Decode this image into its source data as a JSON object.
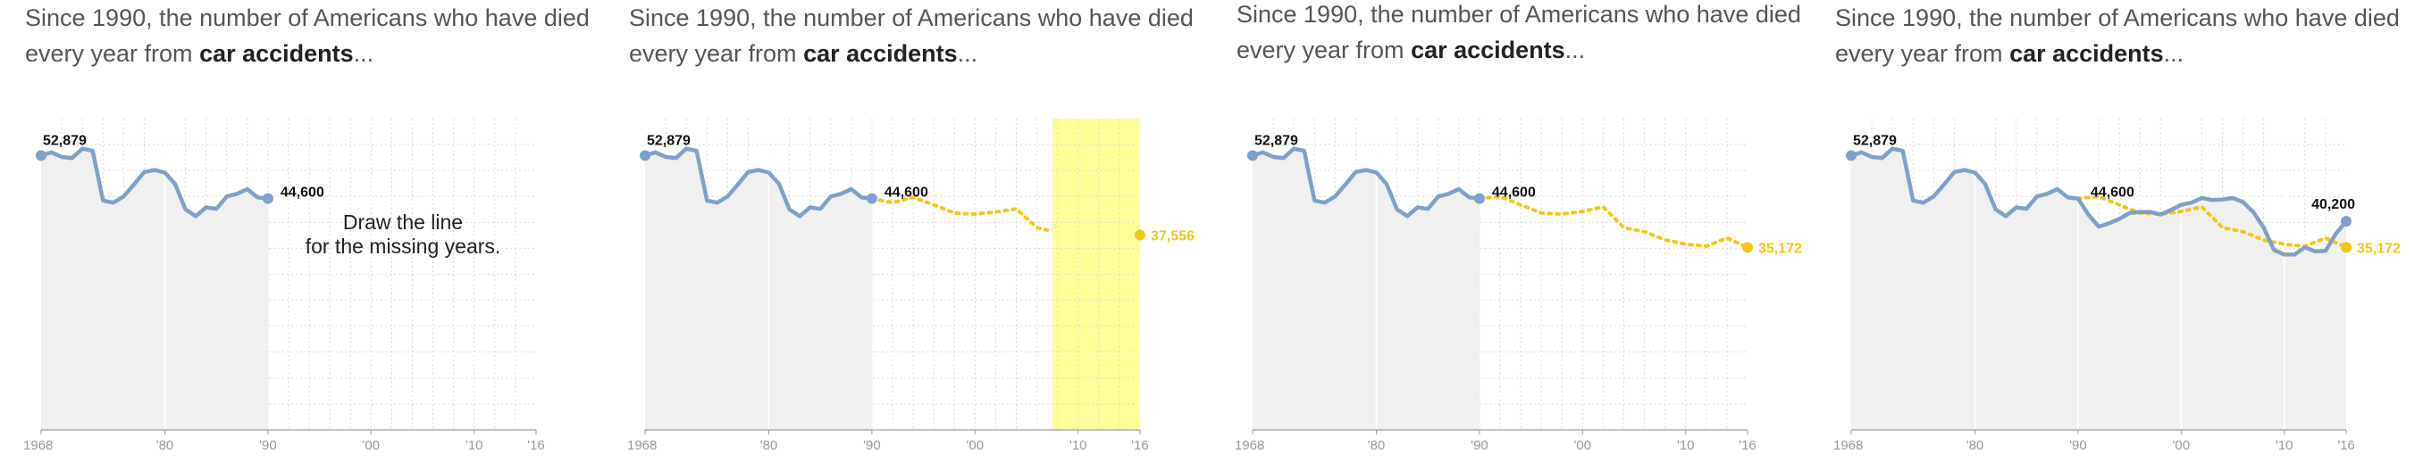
{
  "intro": {
    "prefix": "Since 1990, the number of Americans who have died every year from ",
    "bold": "car accidents",
    "suffix": "..."
  },
  "hint": {
    "line1": "Draw the line",
    "line2": "for the missing years."
  },
  "colors": {
    "actual": "#7fa1c9",
    "guess": "#f5c518",
    "highlight": "#ffff99",
    "shade": "#f0f0f0",
    "grid": "#d9d9d9"
  },
  "chart_data": [
    {
      "type": "line",
      "step": "prompt",
      "x_ticks": [
        "1968",
        "'80",
        "'90",
        "'00",
        "'10",
        "'16"
      ],
      "xlim": [
        1968,
        2016
      ],
      "ylim": [
        0,
        60000
      ],
      "shaded_range": [
        1968,
        1990
      ],
      "series": [
        {
          "role": "actual",
          "x": [
            1968,
            1969,
            1970,
            1971,
            1972,
            1973,
            1974,
            1975,
            1976,
            1977,
            1978,
            1979,
            1980,
            1981,
            1982,
            1983,
            1984,
            1985,
            1986,
            1987,
            1988,
            1989,
            1990
          ],
          "y": [
            52879,
            53500,
            52600,
            52400,
            54200,
            53800,
            44200,
            43800,
            45000,
            47300,
            49700,
            50100,
            49600,
            47400,
            42500,
            41200,
            42900,
            42600,
            45000,
            45500,
            46400,
            44800,
            44600
          ]
        }
      ],
      "labels": [
        {
          "text": "52,879",
          "x": 1968,
          "y": 52879
        },
        {
          "text": "44,600",
          "x": 1990,
          "y": 44600
        }
      ]
    },
    {
      "type": "line",
      "step": "drawing",
      "x_ticks": [
        "1968",
        "'80",
        "'90",
        "'00",
        "'10",
        "'16"
      ],
      "xlim": [
        1968,
        2016
      ],
      "ylim": [
        0,
        60000
      ],
      "shaded_range": [
        1968,
        1990
      ],
      "highlight_range": [
        2007.5,
        2016
      ],
      "series": [
        {
          "role": "actual",
          "x": [
            1968,
            1969,
            1970,
            1971,
            1972,
            1973,
            1974,
            1975,
            1976,
            1977,
            1978,
            1979,
            1980,
            1981,
            1982,
            1983,
            1984,
            1985,
            1986,
            1987,
            1988,
            1989,
            1990
          ],
          "y": [
            52879,
            53500,
            52600,
            52400,
            54200,
            53800,
            44200,
            43800,
            45000,
            47300,
            49700,
            50100,
            49600,
            47400,
            42500,
            41200,
            42900,
            42600,
            45000,
            45500,
            46400,
            44800,
            44600
          ]
        },
        {
          "role": "guess",
          "x": [
            1990,
            1992,
            1994,
            1996,
            1998,
            2000,
            2002,
            2004,
            2006,
            2007
          ],
          "y": [
            44600,
            43800,
            44800,
            43400,
            41800,
            41600,
            42000,
            42600,
            39000,
            38500
          ]
        }
      ],
      "guess_point": {
        "x": 2016,
        "y": 37556,
        "label": "37,556"
      },
      "labels": [
        {
          "text": "52,879",
          "x": 1968,
          "y": 52879
        },
        {
          "text": "44,600",
          "x": 1990,
          "y": 44600
        }
      ]
    },
    {
      "type": "line",
      "step": "drawn",
      "x_ticks": [
        "1968",
        "'80",
        "'90",
        "'00",
        "'10",
        "'16"
      ],
      "xlim": [
        1968,
        2016
      ],
      "ylim": [
        0,
        60000
      ],
      "shaded_range": [
        1968,
        1990
      ],
      "series": [
        {
          "role": "actual",
          "x": [
            1968,
            1969,
            1970,
            1971,
            1972,
            1973,
            1974,
            1975,
            1976,
            1977,
            1978,
            1979,
            1980,
            1981,
            1982,
            1983,
            1984,
            1985,
            1986,
            1987,
            1988,
            1989,
            1990
          ],
          "y": [
            52879,
            53500,
            52600,
            52400,
            54200,
            53800,
            44200,
            43800,
            45000,
            47300,
            49700,
            50100,
            49600,
            47400,
            42500,
            41200,
            42900,
            42600,
            45000,
            45500,
            46400,
            44800,
            44600
          ]
        },
        {
          "role": "guess",
          "x": [
            1990,
            1992,
            1994,
            1996,
            1998,
            2000,
            2002,
            2004,
            2006,
            2008,
            2010,
            2012,
            2014,
            2016
          ],
          "y": [
            44600,
            45000,
            43400,
            41800,
            41600,
            42100,
            43000,
            39000,
            38200,
            36600,
            35800,
            35400,
            37000,
            35172
          ]
        }
      ],
      "guess_point": {
        "x": 2016,
        "y": 35172,
        "label": "35,172"
      },
      "labels": [
        {
          "text": "52,879",
          "x": 1968,
          "y": 52879
        },
        {
          "text": "44,600",
          "x": 1990,
          "y": 44600
        }
      ]
    },
    {
      "type": "line",
      "step": "revealed",
      "x_ticks": [
        "1968",
        "'80",
        "'90",
        "'00",
        "'10",
        "'16"
      ],
      "xlim": [
        1968,
        2016
      ],
      "ylim": [
        0,
        60000
      ],
      "shaded_range": [
        1968,
        2016
      ],
      "series": [
        {
          "role": "actual",
          "x": [
            1968,
            1969,
            1970,
            1971,
            1972,
            1973,
            1974,
            1975,
            1976,
            1977,
            1978,
            1979,
            1980,
            1981,
            1982,
            1983,
            1984,
            1985,
            1986,
            1987,
            1988,
            1989,
            1990,
            1991,
            1992,
            1993,
            1994,
            1995,
            1996,
            1997,
            1998,
            1999,
            2000,
            2001,
            2002,
            2003,
            2004,
            2005,
            2006,
            2007,
            2008,
            2009,
            2010,
            2011,
            2012,
            2013,
            2014,
            2015,
            2016
          ],
          "y": [
            52879,
            53500,
            52600,
            52400,
            54200,
            53800,
            44200,
            43800,
            45000,
            47300,
            49700,
            50100,
            49600,
            47400,
            42500,
            41200,
            42900,
            42600,
            45000,
            45500,
            46400,
            44800,
            44600,
            41500,
            39200,
            39800,
            40700,
            41800,
            42000,
            42000,
            41500,
            42400,
            43400,
            43800,
            44700,
            44300,
            44400,
            44700,
            43900,
            42000,
            39000,
            34700,
            33800,
            33800,
            35200,
            34400,
            34500,
            37800,
            40200
          ]
        },
        {
          "role": "guess",
          "x": [
            1990,
            1992,
            1994,
            1996,
            1998,
            2000,
            2002,
            2004,
            2006,
            2008,
            2010,
            2012,
            2014,
            2016
          ],
          "y": [
            44600,
            45000,
            43400,
            41800,
            41600,
            42100,
            43000,
            39000,
            38200,
            36600,
            35800,
            35400,
            37000,
            35172
          ]
        }
      ],
      "guess_point": {
        "x": 2016,
        "y": 35172,
        "label": "35,172"
      },
      "labels": [
        {
          "text": "52,879",
          "x": 1968,
          "y": 52879
        },
        {
          "text": "44,600",
          "x": 1990,
          "y": 44600
        },
        {
          "text": "40,200",
          "x": 2016,
          "y": 40200
        }
      ]
    }
  ]
}
